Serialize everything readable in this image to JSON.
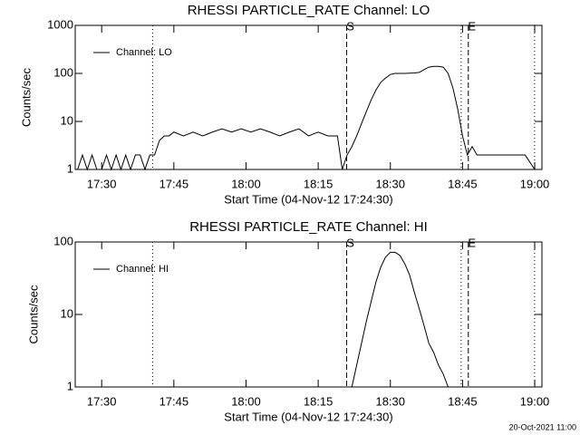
{
  "chart_data": [
    {
      "type": "line",
      "title": "RHESSI PARTICLE_RATE Channel: LO",
      "xlabel": "Start Time (04-Nov-12 17:24:30)",
      "ylabel": "Counts/sec",
      "log_y": true,
      "legend": "upper left",
      "xlim": [
        "17:24:30",
        "19:01:30"
      ],
      "xticks": [
        "17:30",
        "17:45",
        "18:00",
        "18:15",
        "18:30",
        "18:45",
        "19:00"
      ],
      "ylim": [
        1,
        1000
      ],
      "yticks": [
        1,
        10,
        100,
        1000
      ],
      "annotations": [
        {
          "x": "17:40:36",
          "style": "dotted"
        },
        {
          "x": "18:20:55",
          "style": "dashed",
          "label": "S"
        },
        {
          "x": "18:44:43",
          "style": "dotted"
        },
        {
          "x": "18:46:12",
          "style": "dashed",
          "label": "E"
        },
        {
          "x": "18:59:58",
          "style": "dotted"
        }
      ],
      "x": [
        "17:25",
        "17:26",
        "17:27",
        "17:28",
        "17:29",
        "17:30",
        "17:31",
        "17:32",
        "17:33",
        "17:34",
        "17:35",
        "17:36",
        "17:37",
        "17:38",
        "17:39",
        "17:40",
        "17:41",
        "17:42",
        "17:43",
        "17:44",
        "17:45",
        "17:47",
        "17:49",
        "17:51",
        "17:53",
        "17:55",
        "17:57",
        "17:59",
        "18:01",
        "18:03",
        "18:05",
        "18:07",
        "18:09",
        "18:11",
        "18:13",
        "18:15",
        "18:17",
        "18:19",
        "18:20",
        "18:21",
        "18:22",
        "18:23",
        "18:24",
        "18:25",
        "18:26",
        "18:27",
        "18:28",
        "18:29",
        "18:30",
        "18:31",
        "18:33",
        "18:35",
        "18:36",
        "18:37",
        "18:38",
        "18:39",
        "18:40",
        "18:41",
        "18:42",
        "18:43",
        "18:44",
        "18:45",
        "18:46",
        "18:47",
        "18:48",
        "18:50",
        "18:52",
        "18:54",
        "18:56",
        "18:58",
        "19:00"
      ],
      "series": [
        {
          "name": "Channel: LO",
          "color": "#000000",
          "values": [
            1,
            2,
            1,
            2,
            1,
            1,
            2,
            1,
            2,
            1,
            2,
            1,
            2,
            2,
            1,
            2,
            2,
            4,
            5,
            5,
            6,
            5,
            6,
            5,
            6,
            7,
            6,
            7,
            6,
            7,
            6,
            5,
            6,
            7,
            5,
            6,
            5,
            5,
            1,
            2,
            3,
            5,
            9,
            16,
            28,
            45,
            65,
            80,
            95,
            100,
            100,
            102,
            105,
            120,
            135,
            140,
            140,
            135,
            100,
            50,
            18,
            5,
            2,
            3,
            2,
            2,
            2,
            2,
            2,
            2,
            1
          ]
        }
      ]
    },
    {
      "type": "line",
      "title": "RHESSI PARTICLE_RATE Channel: HI",
      "xlabel": "Start Time (04-Nov-12 17:24:30)",
      "ylabel": "Counts/sec",
      "log_y": true,
      "legend": "upper left",
      "xlim": [
        "17:24:30",
        "19:01:30"
      ],
      "xticks": [
        "17:30",
        "17:45",
        "18:00",
        "18:15",
        "18:30",
        "18:45",
        "19:00"
      ],
      "ylim": [
        1,
        100
      ],
      "yticks": [
        1,
        10,
        100
      ],
      "annotations": [
        {
          "x": "17:40:36",
          "style": "dotted"
        },
        {
          "x": "18:20:55",
          "style": "dashed",
          "label": "S"
        },
        {
          "x": "18:44:43",
          "style": "dotted"
        },
        {
          "x": "18:46:12",
          "style": "dashed",
          "label": "E"
        },
        {
          "x": "18:59:58",
          "style": "dotted"
        }
      ],
      "x": [
        "18:22",
        "18:23",
        "18:24",
        "18:25",
        "18:26",
        "18:27",
        "18:28",
        "18:29",
        "18:30",
        "18:31",
        "18:32",
        "18:33",
        "18:34",
        "18:35",
        "18:36",
        "18:37",
        "18:38",
        "18:39",
        "18:40",
        "18:41",
        "18:42"
      ],
      "series": [
        {
          "name": "Channel: HI",
          "color": "#000000",
          "values": [
            1,
            2,
            4,
            8,
            15,
            28,
            45,
            62,
            72,
            72,
            65,
            50,
            35,
            20,
            12,
            7,
            4,
            3,
            2,
            1.5,
            1
          ]
        }
      ]
    }
  ],
  "footer": "20-Oct-2021 11:00"
}
